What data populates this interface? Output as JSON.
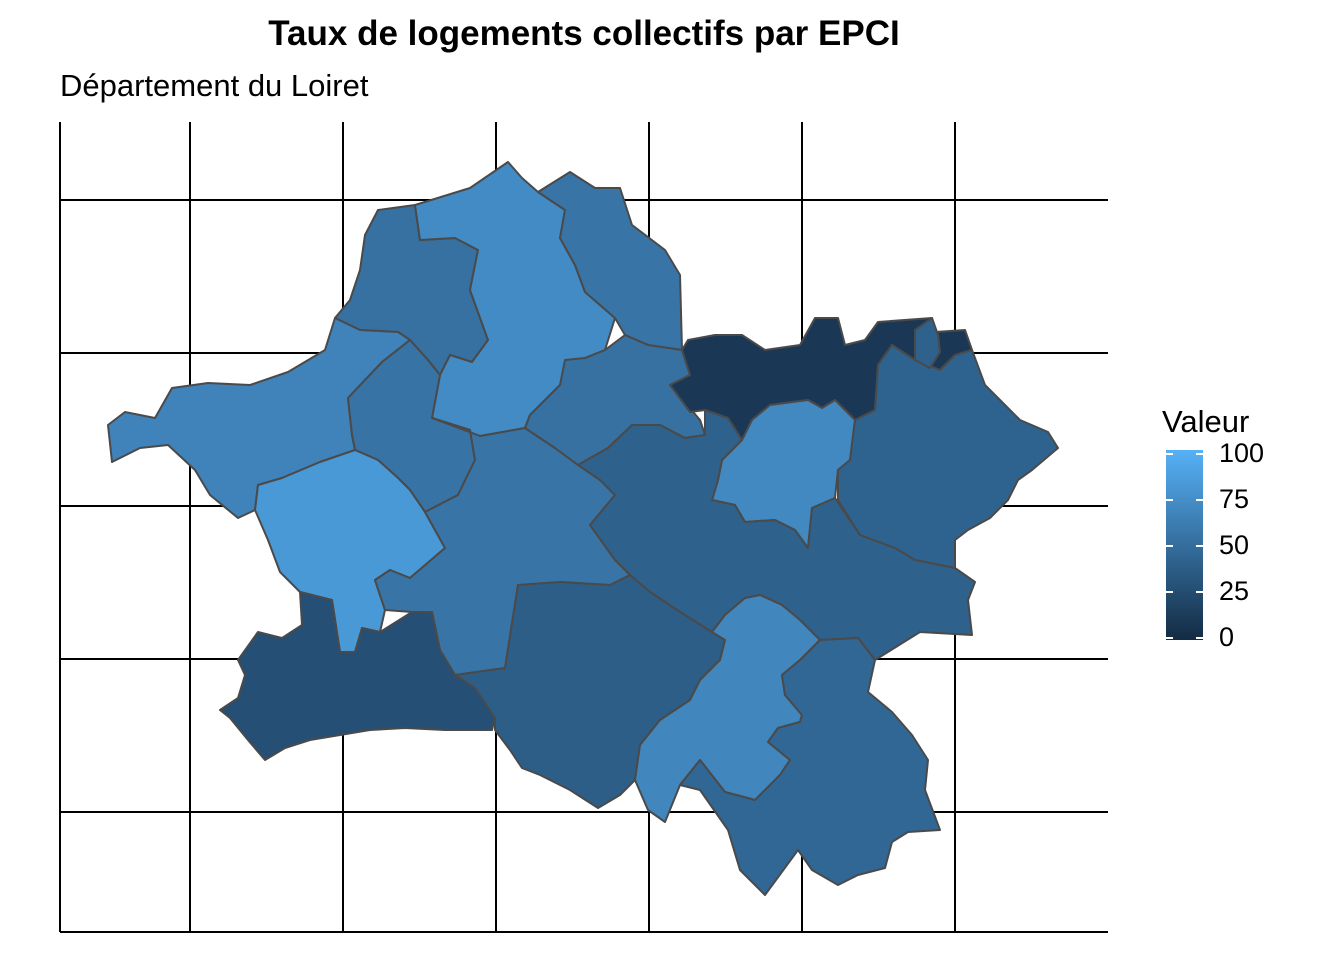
{
  "title": "Taux de logements collectifs par EPCI",
  "subtitle": "Département du Loiret",
  "legend": {
    "title": "Valeur",
    "ticks": [
      "100",
      "75",
      "50",
      "25",
      "0"
    ],
    "gradient_low": "#132b43",
    "gradient_high": "#56b1f7"
  },
  "colors": {
    "border": "#4a4a4a",
    "grid": "#000000"
  },
  "regions": [
    {
      "id": "nord-ouest",
      "value": 52
    },
    {
      "id": "nord-centre",
      "value": 72
    },
    {
      "id": "nord-est",
      "value": 55
    },
    {
      "id": "ouest",
      "value": 66
    },
    {
      "id": "centre-ouest",
      "value": 54
    },
    {
      "id": "beauce-sud",
      "value": 82
    },
    {
      "id": "orleans",
      "value": 55
    },
    {
      "id": "centre-est",
      "value": 52
    },
    {
      "id": "est-haut",
      "value": 10
    },
    {
      "id": "montargis",
      "value": 70
    },
    {
      "id": "est",
      "value": 42
    },
    {
      "id": "loire-centre",
      "value": 40
    },
    {
      "id": "sologne-ouest",
      "value": 27
    },
    {
      "id": "sologne-centre",
      "value": 38
    },
    {
      "id": "giennois-ouest",
      "value": 68
    },
    {
      "id": "giennois-est",
      "value": 45
    },
    {
      "id": "sud-est",
      "value": 40
    }
  ]
}
